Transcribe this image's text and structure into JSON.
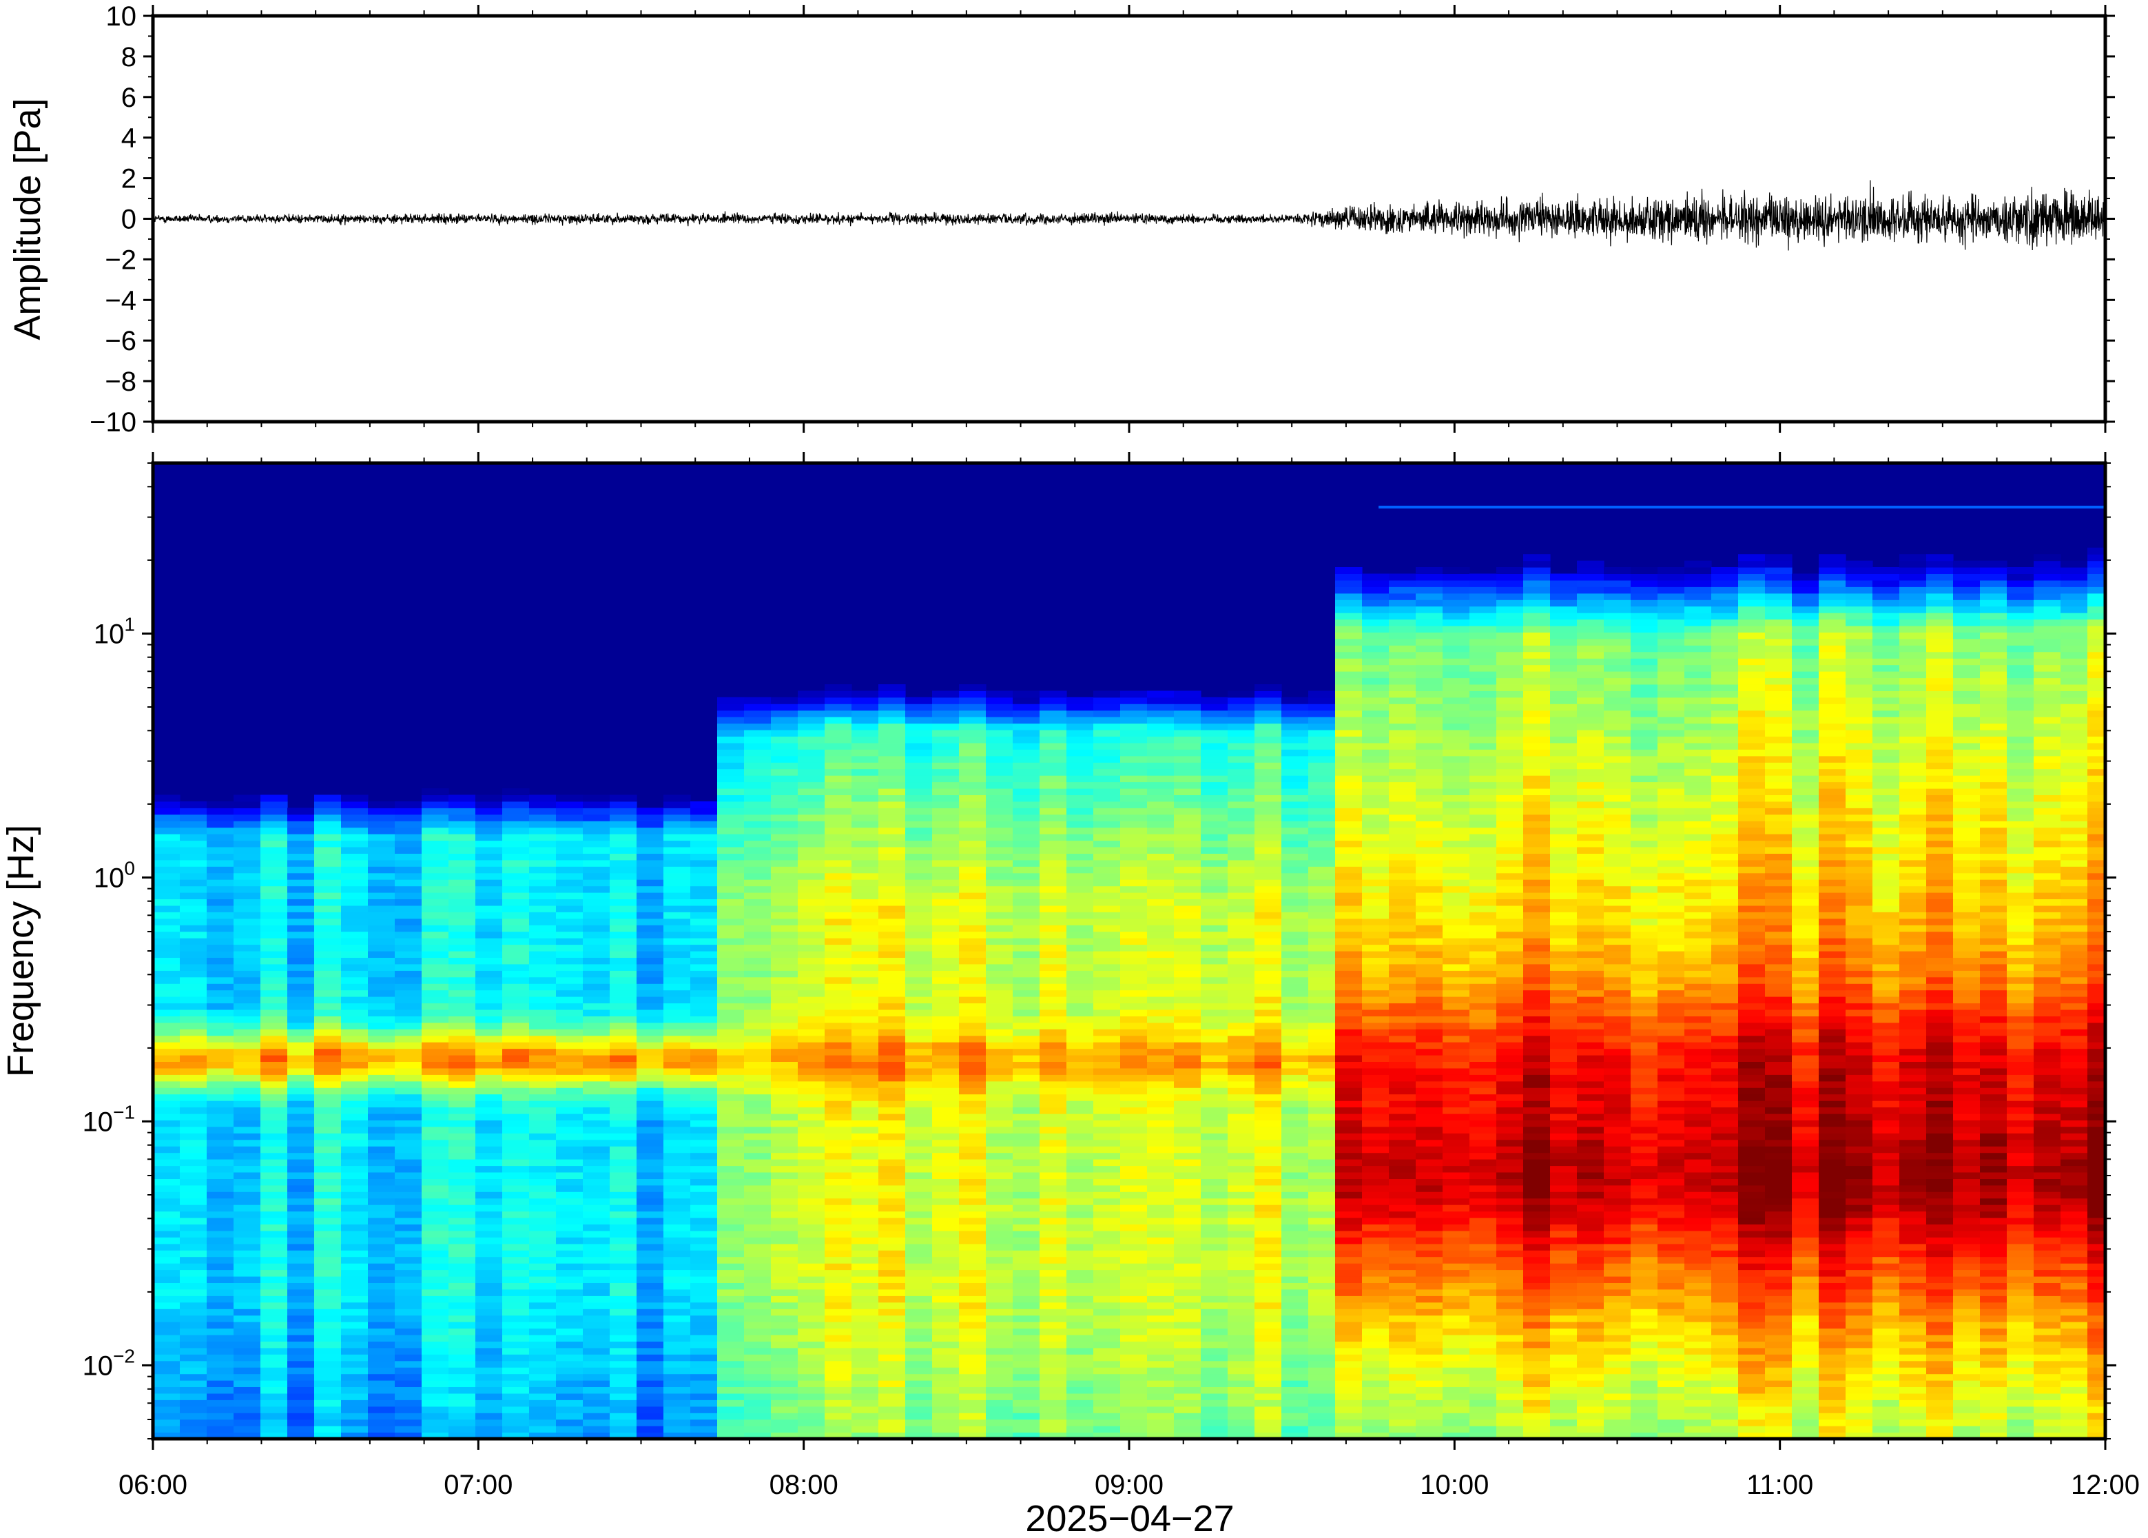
{
  "chart_data": [
    {
      "type": "line",
      "panel": "waveform",
      "ylabel": "Amplitude [Pa]",
      "xlabel": "",
      "ylim": [
        -10,
        10
      ],
      "yticks": [
        10,
        8,
        6,
        4,
        2,
        0,
        -2,
        -4,
        -6,
        -8,
        -10
      ],
      "ytick_labels": [
        "10",
        "8",
        "6",
        "4",
        "2",
        "0",
        "−2",
        "−4",
        "−6",
        "−8",
        "−10"
      ],
      "xlim": [
        "2025-04-27 06:00",
        "2025-04-27 12:00"
      ],
      "series": [
        {
          "color": "#000000",
          "envelope_x": [
            "06:00",
            "07:00",
            "08:00",
            "09:00",
            "09:30",
            "09:44",
            "10:00",
            "10:30",
            "11:00",
            "11:30",
            "12:00"
          ],
          "envelope_abs_amplitude": [
            0.15,
            0.18,
            0.2,
            0.2,
            0.15,
            0.55,
            0.6,
            0.8,
            0.9,
            0.95,
            1.05
          ],
          "peak_max": 1.9,
          "peak_min": -2.2
        }
      ]
    },
    {
      "type": "heatmap",
      "panel": "spectrogram",
      "ylabel": "Frequency [Hz]",
      "xlabel": "2025−04−27",
      "yscale": "log",
      "ylim": [
        0.005,
        50
      ],
      "yticks": [
        10,
        1,
        0.1,
        0.01
      ],
      "ytick_labels": [
        {
          "base": "10",
          "exp": "1"
        },
        {
          "base": "10",
          "exp": "0"
        },
        {
          "base": "10",
          "exp": "−1"
        },
        {
          "base": "10",
          "exp": "−2"
        }
      ],
      "xlim": [
        "2025-04-27 06:00",
        "2025-04-27 12:00"
      ],
      "xticks": [
        "06:00",
        "07:00",
        "08:00",
        "09:00",
        "10:00",
        "11:00",
        "12:00"
      ],
      "colormap": "jet",
      "colorbar": "none",
      "data_note": "power (0 = low, 1 = high) per time segment, estimated",
      "time_segments": [
        {
          "start": "06:00",
          "end": "07:43",
          "base_low": 0.35,
          "peak_0p18Hz": 0.72,
          "rolloff_hz": 1.5
        },
        {
          "start": "07:43",
          "end": "09:38",
          "base_low": 0.58,
          "peak_0p18Hz": 0.72,
          "rolloff_hz": 4.0
        },
        {
          "start": "09:38",
          "end": "12:00",
          "base_low": 0.7,
          "peak_0p05Hz": 0.92,
          "rolloff_hz": 10.0,
          "line_hz": 33
        }
      ]
    }
  ]
}
